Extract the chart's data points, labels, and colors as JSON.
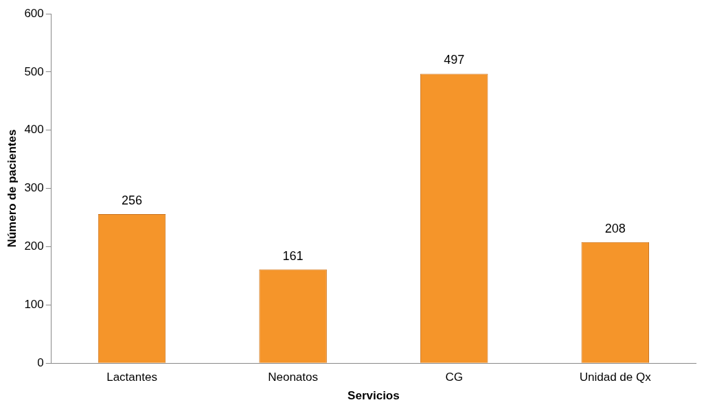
{
  "chart_data": {
    "type": "bar",
    "xlabel": "Servicios",
    "ylabel": "Número de pacientes",
    "categories": [
      "Lactantes",
      "Neonatos",
      "CG",
      "Unidad de Qx"
    ],
    "values": [
      256,
      161,
      497,
      208
    ],
    "color": "#f5952a",
    "ylim": [
      0,
      600
    ],
    "yticks": [
      0,
      100,
      200,
      300,
      400,
      500,
      600
    ],
    "grid": false,
    "data_labels": true
  }
}
